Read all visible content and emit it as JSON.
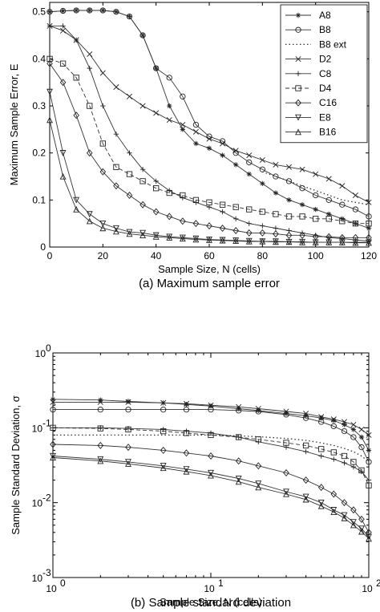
{
  "chart_data": [
    {
      "type": "line",
      "caption": "(a) Maximum sample error",
      "xlabel": "Sample Size, N (cells)",
      "ylabel": "Maximum Sample Error, E",
      "xlim": [
        0,
        120
      ],
      "ylim": [
        0,
        0.52
      ],
      "xticks": [
        "0",
        "20",
        "40",
        "60",
        "80",
        "100",
        "120"
      ],
      "yticks": [
        "0",
        "0.1",
        "0.2",
        "0.3",
        "0.4",
        "0.5"
      ],
      "grid": false,
      "legend_position": "top-right",
      "series": [
        {
          "name": "A8",
          "marker": "star",
          "dash": "solid",
          "x": [
            0,
            5,
            10,
            15,
            20,
            25,
            30,
            35,
            40,
            45,
            50,
            55,
            60,
            65,
            70,
            75,
            80,
            85,
            90,
            95,
            100,
            105,
            110,
            115,
            120
          ],
          "y": [
            0.5,
            0.502,
            0.503,
            0.503,
            0.503,
            0.5,
            0.49,
            0.45,
            0.38,
            0.3,
            0.25,
            0.22,
            0.21,
            0.195,
            0.175,
            0.155,
            0.135,
            0.115,
            0.1,
            0.09,
            0.08,
            0.07,
            0.06,
            0.05,
            0.04
          ]
        },
        {
          "name": "B8",
          "marker": "circle",
          "dash": "solid",
          "x": [
            0,
            5,
            10,
            15,
            20,
            25,
            30,
            35,
            40,
            45,
            50,
            55,
            60,
            65,
            70,
            75,
            80,
            85,
            90,
            95,
            100,
            105,
            110,
            115,
            120
          ],
          "y": [
            0.5,
            0.502,
            0.503,
            0.503,
            0.503,
            0.5,
            0.49,
            0.45,
            0.38,
            0.36,
            0.32,
            0.26,
            0.235,
            0.225,
            0.2,
            0.18,
            0.165,
            0.15,
            0.14,
            0.125,
            0.11,
            0.1,
            0.09,
            0.08,
            0.065
          ]
        },
        {
          "name": "B8 ext",
          "marker": "none",
          "dash": "dotted",
          "x": [
            80,
            85,
            90,
            95,
            100,
            105,
            110,
            115,
            120
          ],
          "y": [
            0.16,
            0.15,
            0.14,
            0.13,
            0.12,
            0.11,
            0.1,
            0.095,
            0.09
          ]
        },
        {
          "name": "D2",
          "marker": "x",
          "dash": "solid",
          "x": [
            0,
            5,
            10,
            15,
            20,
            25,
            30,
            35,
            40,
            45,
            50,
            55,
            60,
            65,
            70,
            75,
            80,
            85,
            90,
            95,
            100,
            105,
            110,
            115,
            120
          ],
          "y": [
            0.47,
            0.46,
            0.44,
            0.41,
            0.37,
            0.34,
            0.32,
            0.3,
            0.285,
            0.27,
            0.26,
            0.245,
            0.23,
            0.22,
            0.205,
            0.195,
            0.185,
            0.175,
            0.17,
            0.165,
            0.155,
            0.145,
            0.13,
            0.11,
            0.095
          ]
        },
        {
          "name": "C8",
          "marker": "plus",
          "dash": "solid",
          "x": [
            0,
            5,
            10,
            15,
            20,
            25,
            30,
            35,
            40,
            45,
            50,
            55,
            60,
            65,
            70,
            75,
            80,
            85,
            90,
            95,
            100,
            105,
            110,
            115,
            120
          ],
          "y": [
            0.47,
            0.47,
            0.44,
            0.38,
            0.3,
            0.24,
            0.2,
            0.165,
            0.14,
            0.12,
            0.105,
            0.095,
            0.085,
            0.075,
            0.06,
            0.05,
            0.045,
            0.04,
            0.035,
            0.03,
            0.025,
            0.02,
            0.018,
            0.015,
            0.013
          ]
        },
        {
          "name": "D4",
          "marker": "square",
          "dash": "dashed",
          "x": [
            0,
            5,
            10,
            15,
            20,
            25,
            30,
            35,
            40,
            45,
            50,
            55,
            60,
            65,
            70,
            75,
            80,
            85,
            90,
            95,
            100,
            105,
            110,
            115,
            120
          ],
          "y": [
            0.4,
            0.39,
            0.36,
            0.3,
            0.22,
            0.17,
            0.155,
            0.14,
            0.125,
            0.115,
            0.11,
            0.1,
            0.095,
            0.09,
            0.085,
            0.08,
            0.075,
            0.07,
            0.065,
            0.065,
            0.06,
            0.06,
            0.055,
            0.05,
            0.05
          ]
        },
        {
          "name": "C16",
          "marker": "diamond",
          "dash": "solid",
          "x": [
            0,
            5,
            10,
            15,
            20,
            25,
            30,
            35,
            40,
            45,
            50,
            55,
            60,
            65,
            70,
            75,
            80,
            85,
            90,
            95,
            100,
            105,
            110,
            115,
            120
          ],
          "y": [
            0.39,
            0.35,
            0.28,
            0.2,
            0.16,
            0.13,
            0.11,
            0.09,
            0.075,
            0.065,
            0.055,
            0.05,
            0.045,
            0.04,
            0.035,
            0.03,
            0.03,
            0.028,
            0.025,
            0.025,
            0.022,
            0.022,
            0.02,
            0.02,
            0.02
          ]
        },
        {
          "name": "E8",
          "marker": "triangle-down",
          "dash": "solid",
          "x": [
            0,
            5,
            10,
            15,
            20,
            25,
            30,
            35,
            40,
            45,
            50,
            55,
            60,
            65,
            70,
            75,
            80,
            85,
            90,
            95,
            100,
            105,
            110,
            115,
            120
          ],
          "y": [
            0.33,
            0.2,
            0.1,
            0.07,
            0.05,
            0.04,
            0.032,
            0.03,
            0.025,
            0.022,
            0.02,
            0.018,
            0.016,
            0.015,
            0.014,
            0.013,
            0.012,
            0.012,
            0.011,
            0.011,
            0.01,
            0.01,
            0.01,
            0.01,
            0.01
          ]
        },
        {
          "name": "B16",
          "marker": "triangle-up",
          "dash": "solid",
          "x": [
            0,
            5,
            10,
            15,
            20,
            25,
            30,
            35,
            40,
            45,
            50,
            55,
            60,
            65,
            70,
            75,
            80,
            85,
            90,
            95,
            100,
            105,
            110,
            115,
            120
          ],
          "y": [
            0.27,
            0.15,
            0.08,
            0.055,
            0.04,
            0.033,
            0.028,
            0.025,
            0.022,
            0.02,
            0.018,
            0.016,
            0.015,
            0.014,
            0.013,
            0.012,
            0.012,
            0.011,
            0.011,
            0.01,
            0.01,
            0.01,
            0.01,
            0.009,
            0.009
          ]
        }
      ]
    },
    {
      "type": "line",
      "caption": "(b) Sample standard deviation",
      "xlabel": "Sample Size, N (cells)",
      "ylabel": "Sample Standard Deviation, σ",
      "xscale": "log",
      "yscale": "log",
      "xlim": [
        1,
        100
      ],
      "ylim": [
        0.001,
        1
      ],
      "xticks": [
        {
          "base": "10",
          "exp": "0"
        },
        {
          "base": "10",
          "exp": "1"
        },
        {
          "base": "10",
          "exp": "2"
        }
      ],
      "yticks": [
        {
          "base": "10",
          "exp": "0"
        },
        {
          "base": "10",
          "exp": "-1"
        },
        {
          "base": "10",
          "exp": "-2"
        },
        {
          "base": "10",
          "exp": "-3"
        }
      ],
      "grid": false,
      "series": [
        {
          "name": "A8",
          "marker": "star",
          "dash": "solid",
          "x": [
            1,
            2,
            3,
            5,
            7,
            10,
            15,
            20,
            30,
            40,
            50,
            60,
            70,
            80,
            90,
            100
          ],
          "y": [
            0.24,
            0.235,
            0.225,
            0.215,
            0.205,
            0.195,
            0.18,
            0.17,
            0.155,
            0.145,
            0.135,
            0.125,
            0.11,
            0.095,
            0.075,
            0.05
          ]
        },
        {
          "name": "B8",
          "marker": "circle",
          "dash": "solid",
          "x": [
            1,
            2,
            3,
            5,
            7,
            10,
            15,
            20,
            30,
            40,
            50,
            60,
            70,
            80,
            90,
            100
          ],
          "y": [
            0.175,
            0.175,
            0.175,
            0.175,
            0.175,
            0.175,
            0.17,
            0.165,
            0.15,
            0.135,
            0.12,
            0.105,
            0.09,
            0.075,
            0.055,
            0.035
          ]
        },
        {
          "name": "B8 ext",
          "marker": "none",
          "dash": "dotted",
          "x": [
            1,
            2,
            3,
            5,
            7,
            10,
            15,
            20,
            30,
            40,
            50,
            60,
            70,
            80,
            90,
            100
          ],
          "y": [
            0.08,
            0.08,
            0.08,
            0.08,
            0.08,
            0.08,
            0.078,
            0.076,
            0.072,
            0.068,
            0.063,
            0.058,
            0.053,
            0.048,
            0.042,
            0.035
          ]
        },
        {
          "name": "D2",
          "marker": "x",
          "dash": "solid",
          "x": [
            1,
            2,
            3,
            5,
            7,
            10,
            15,
            20,
            30,
            40,
            50,
            60,
            70,
            80,
            90,
            100
          ],
          "y": [
            0.22,
            0.22,
            0.22,
            0.215,
            0.21,
            0.2,
            0.19,
            0.18,
            0.165,
            0.155,
            0.14,
            0.13,
            0.12,
            0.11,
            0.095,
            0.08
          ]
        },
        {
          "name": "C8",
          "marker": "plus",
          "dash": "solid",
          "x": [
            1,
            2,
            3,
            5,
            7,
            10,
            15,
            20,
            30,
            40,
            50,
            60,
            70,
            80,
            90,
            100
          ],
          "y": [
            0.1,
            0.1,
            0.098,
            0.095,
            0.09,
            0.085,
            0.075,
            0.065,
            0.055,
            0.048,
            0.042,
            0.038,
            0.034,
            0.03,
            0.026,
            0.02
          ]
        },
        {
          "name": "D4",
          "marker": "square",
          "dash": "dashed",
          "x": [
            1,
            2,
            3,
            5,
            7,
            10,
            15,
            20,
            30,
            40,
            50,
            60,
            70,
            80,
            90,
            100
          ],
          "y": [
            0.1,
            0.098,
            0.095,
            0.09,
            0.085,
            0.08,
            0.075,
            0.07,
            0.063,
            0.058,
            0.052,
            0.047,
            0.042,
            0.035,
            0.027,
            0.017
          ]
        },
        {
          "name": "C16",
          "marker": "diamond",
          "dash": "solid",
          "x": [
            1,
            2,
            3,
            5,
            7,
            10,
            15,
            20,
            30,
            40,
            50,
            60,
            70,
            80,
            90,
            100
          ],
          "y": [
            0.06,
            0.058,
            0.055,
            0.05,
            0.046,
            0.042,
            0.036,
            0.031,
            0.025,
            0.02,
            0.016,
            0.013,
            0.01,
            0.008,
            0.006,
            0.004
          ]
        },
        {
          "name": "E8",
          "marker": "triangle-down",
          "dash": "solid",
          "x": [
            1,
            2,
            3,
            5,
            7,
            10,
            15,
            20,
            30,
            40,
            50,
            60,
            70,
            80,
            90,
            100
          ],
          "y": [
            0.042,
            0.038,
            0.035,
            0.031,
            0.028,
            0.025,
            0.021,
            0.018,
            0.014,
            0.012,
            0.01,
            0.008,
            0.0068,
            0.0055,
            0.0045,
            0.0035
          ]
        },
        {
          "name": "B16",
          "marker": "triangle-up",
          "dash": "solid",
          "x": [
            1,
            2,
            3,
            5,
            7,
            10,
            15,
            20,
            30,
            40,
            50,
            60,
            70,
            80,
            90,
            100
          ],
          "y": [
            0.04,
            0.036,
            0.033,
            0.029,
            0.026,
            0.023,
            0.019,
            0.016,
            0.013,
            0.011,
            0.009,
            0.0075,
            0.0062,
            0.005,
            0.0041,
            0.0033
          ]
        }
      ]
    }
  ]
}
